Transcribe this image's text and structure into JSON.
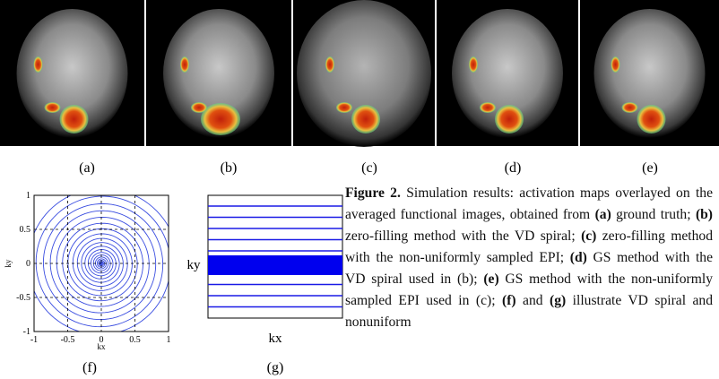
{
  "figure": {
    "panels": [
      "(a)",
      "(b)",
      "(c)",
      "(d)",
      "(e)",
      "(f)",
      "(g)"
    ],
    "plot_f": {
      "xlabel": "kx",
      "ylabel": "ky",
      "xlim": [
        -1,
        1
      ],
      "ylim": [
        -1,
        1
      ],
      "xticks": [
        -1,
        -0.5,
        0,
        0.5,
        1
      ],
      "yticks": [
        -1,
        -0.5,
        0,
        0.5,
        1
      ]
    },
    "plot_g": {
      "xlabel": "kx",
      "ylabel": "ky"
    },
    "caption": [
      {
        "text": "Figure 2.",
        "bold": true
      },
      {
        "text": " Simulation results: activation maps overlayed on the averaged functional images, obtained from "
      },
      {
        "text": "(a)",
        "bold": true
      },
      {
        "text": " ground truth; "
      },
      {
        "text": "(b)",
        "bold": true
      },
      {
        "text": " zero-filling method with the VD spiral; "
      },
      {
        "text": "(c)",
        "bold": true
      },
      {
        "text": " zero-filling method with the non-uniformly sampled EPI; "
      },
      {
        "text": "(d)",
        "bold": true
      },
      {
        "text": " GS method with the VD spiral used in (b); "
      },
      {
        "text": "(e)",
        "bold": true
      },
      {
        "text": " GS method with the non-uniformly sampled EPI used in (c); "
      },
      {
        "text": "(f)",
        "bold": true
      },
      {
        "text": " and "
      },
      {
        "text": "(g)",
        "bold": true
      },
      {
        "text": " illustrate VD spiral and nonuniform"
      }
    ]
  }
}
